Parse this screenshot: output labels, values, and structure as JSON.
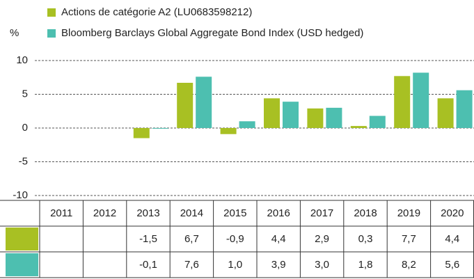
{
  "chart_data": {
    "type": "bar",
    "y_label": "%",
    "categories": [
      "2011",
      "2012",
      "2013",
      "2014",
      "2015",
      "2016",
      "2017",
      "2018",
      "2019",
      "2020"
    ],
    "series": [
      {
        "name": "Actions de catégorie A2 (LU0683598212)",
        "color": "#a8c023",
        "values": [
          null,
          null,
          -1.5,
          6.7,
          -0.9,
          4.4,
          2.9,
          0.3,
          7.7,
          4.4
        ],
        "value_labels": [
          null,
          null,
          "-1,5",
          "6,7",
          "-0,9",
          "4,4",
          "2,9",
          "0,3",
          "7,7",
          "4,4"
        ]
      },
      {
        "name": "Bloomberg Barclays Global Aggregate Bond Index (USD hedged)",
        "color": "#4dbfb0",
        "values": [
          null,
          null,
          -0.1,
          7.6,
          1.0,
          3.9,
          3.0,
          1.8,
          8.2,
          5.6
        ],
        "value_labels": [
          null,
          null,
          "-0,1",
          "7,6",
          "1,0",
          "3,9",
          "3,0",
          "1,8",
          "8,2",
          "5,6"
        ]
      }
    ],
    "ylim": [
      -10,
      10
    ],
    "yticks": [
      10,
      5,
      0,
      -5,
      -10
    ],
    "grid": true
  }
}
